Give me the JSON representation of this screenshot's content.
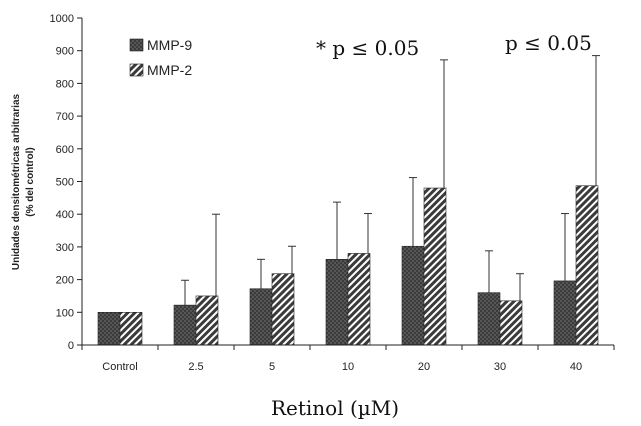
{
  "chart_data": {
    "type": "bar",
    "categories": [
      "Control",
      "2.5",
      "5",
      "10",
      "20",
      "30",
      "40"
    ],
    "series": [
      {
        "name": "MMP-9",
        "values": [
          100,
          122,
          172,
          262,
          302,
          160,
          196
        ],
        "error_upper": [
          100,
          198,
          262,
          437,
          512,
          288,
          402
        ],
        "color": "#3b3b3b",
        "pattern": "dots"
      },
      {
        "name": "MMP-2",
        "values": [
          100,
          150,
          218,
          280,
          480,
          135,
          487
        ],
        "error_upper": [
          100,
          400,
          302,
          402,
          872,
          218,
          885
        ],
        "color": "#3b3b3b",
        "pattern": "diagonal-stripes"
      }
    ],
    "ylim": [
      0,
      1000
    ],
    "yticks": [
      0,
      100,
      200,
      300,
      400,
      500,
      600,
      700,
      800,
      900,
      1000
    ],
    "ylabel_line1": "Unidades densitométricas arbitrarias",
    "ylabel_line2": "(% del control)",
    "xlabel": "Retinol (µM)",
    "annotations": [
      "* p ≤ 0.05",
      "p ≤ 0.05"
    ],
    "legend_position": "top-left",
    "grid": false
  }
}
